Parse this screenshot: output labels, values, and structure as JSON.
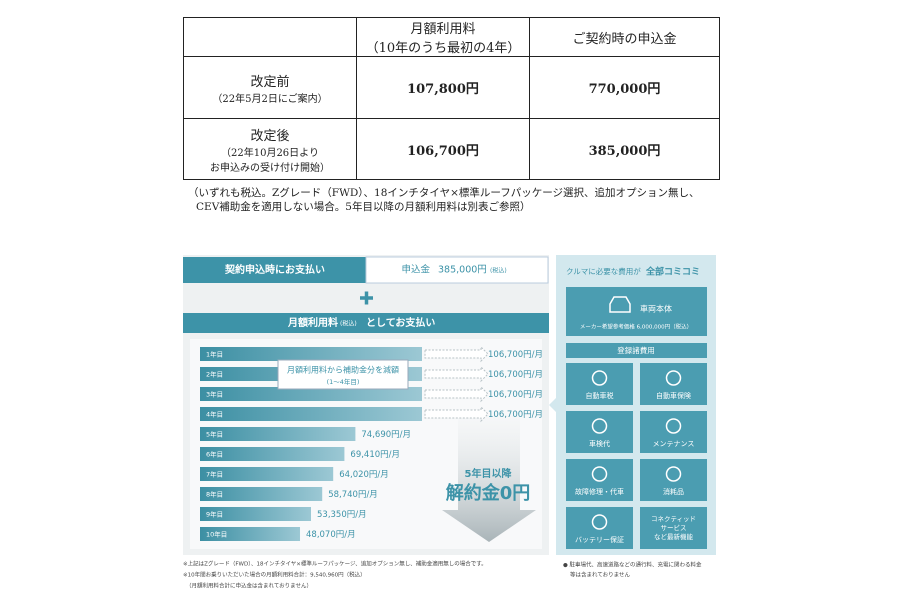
{
  "table": {
    "header": {
      "monthly": [
        "月額利用料",
        "（10年のうち最初の4年）"
      ],
      "deposit": "ご契約時の申込金"
    },
    "rows": [
      {
        "label": [
          "改定前",
          "（22年5月2日にご案内）"
        ],
        "monthly": "107,800円",
        "deposit": "770,000円"
      },
      {
        "label": [
          "改定後",
          "（22年10月26日より",
          "お申込みの受け付け開始）"
        ],
        "monthly": "106,700円",
        "deposit": "385,000円"
      }
    ]
  },
  "note": [
    "（いずれも税込。Zグレード（FWD）、18インチタイヤ×標準ルーフパッケージ選択、追加オプション無し、",
    "CEV補助金を適用しない場合。5年目以降の月額利用料は別表ご参照）"
  ],
  "plan": {
    "upfront_label": "契約申込時にお支払い",
    "deposit_label": "申込金",
    "deposit": "385,000円",
    "tax": "(税込)",
    "monthly_band": [
      "月額利用料",
      "(税込)",
      "としてお支払い"
    ],
    "years": [
      "1年目",
      "2年目",
      "3年目",
      "4年目",
      "5年目",
      "6年目",
      "7年目",
      "8年目",
      "9年目",
      "10年目"
    ],
    "values": [
      106700,
      106700,
      106700,
      106700,
      74690,
      69410,
      64020,
      58740,
      53350,
      48070
    ],
    "value_labels": [
      "106,700円/月",
      "106,700円/月",
      "106,700円/月",
      "106,700円/月",
      "74,690円/月",
      "69,410円/月",
      "64,020円/月",
      "58,740円/月",
      "53,350円/月",
      "48,070円/月"
    ],
    "callout": [
      "月額利用料から補助金分を減額",
      "(1〜4年目)"
    ],
    "after": "5年目以降",
    "no_fee": "解約金0円",
    "footnotes": [
      "※上記はZグレード（FWD）、18インチタイヤ×標準ルーフパッケージ、追加オプション無し、補助金適用無しの場合です。",
      "※10年間お乗りいただいた場合の月額利用料合計：9,540,960円（税込）",
      "（月額利用料合計に申込金は含まれておりません）"
    ]
  },
  "included": {
    "title": [
      "クルマに必要な費用が",
      "全部コミコミ"
    ],
    "vehicle": "車両本体",
    "vehicle_note": "メーカー希望参考価格 6,000,000円（税込）",
    "registration": "登録諸費用",
    "items": [
      [
        "自動車税"
      ],
      [
        "自動車保険"
      ],
      [
        "車検代"
      ],
      [
        "メンテナンス"
      ],
      [
        "故障修理・代車"
      ],
      [
        "消耗品"
      ],
      [
        "バッテリー保証"
      ],
      [
        "コネクティッド",
        "サービス",
        "など最新機能"
      ]
    ],
    "note": [
      "● 駐車場代、高速道路などの通行料、充電に関わる料金",
      "等は含まれておりません"
    ]
  }
}
